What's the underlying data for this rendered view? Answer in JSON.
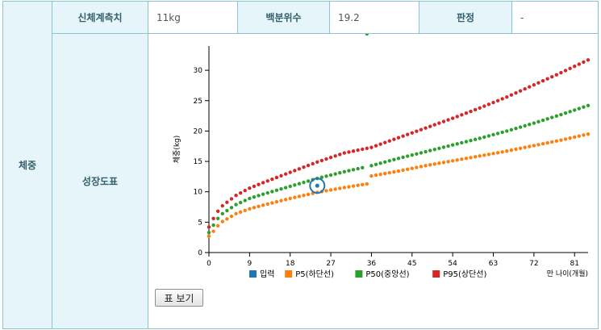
{
  "table": {
    "row_label": "체중",
    "measure_label": "신체계측치",
    "measure_value": "11kg",
    "percentile_label": "백분위수",
    "percentile_value": "19.2",
    "judgement_label": "판정",
    "judgement_value": "-",
    "chart_label": "성장도표",
    "table_view_button": "표 보기"
  },
  "chart_data": {
    "type": "scatter",
    "xlabel": "만 나이(개월)",
    "ylabel": "체중(kg)",
    "x_ticks": [
      0,
      9,
      18,
      27,
      36,
      45,
      54,
      63,
      72,
      81
    ],
    "y_ticks": [
      0,
      5,
      10,
      15,
      20,
      25,
      30
    ],
    "xlim": [
      0,
      84
    ],
    "ylim": [
      0,
      34
    ],
    "legend_position": "bottom",
    "series": [
      {
        "name": "입력",
        "color": "#1f77b4",
        "x": [
          24
        ],
        "y": [
          11
        ]
      },
      {
        "name": "P5(하단선)",
        "color": "#ff7f0e",
        "x": [
          0,
          1,
          2,
          3,
          6,
          9,
          12,
          18,
          24,
          30,
          35,
          36,
          42,
          48,
          54,
          60,
          66,
          72,
          78,
          84
        ],
        "y": [
          2.7,
          3.5,
          4.4,
          5.1,
          6.4,
          7.2,
          7.8,
          8.9,
          9.9,
          10.7,
          11.3,
          12.6,
          13.4,
          14.3,
          15.1,
          15.9,
          16.7,
          17.6,
          18.5,
          19.5
        ]
      },
      {
        "name": "P50(중앙선)",
        "color": "#2ca02c",
        "x": [
          0,
          1,
          2,
          3,
          6,
          9,
          12,
          18,
          24,
          30,
          36,
          42,
          48,
          54,
          60,
          66,
          72,
          78,
          84
        ],
        "y": [
          3.3,
          4.5,
          5.6,
          6.4,
          7.9,
          8.9,
          9.6,
          10.9,
          12.2,
          13.3,
          14.3,
          15.5,
          16.6,
          17.7,
          18.8,
          20.0,
          21.3,
          22.7,
          24.2
        ]
      },
      {
        "name": "P95(상단선)",
        "color": "#d62728",
        "x": [
          0,
          1,
          2,
          3,
          6,
          9,
          12,
          18,
          24,
          30,
          36,
          42,
          48,
          54,
          60,
          66,
          72,
          78,
          84
        ],
        "y": [
          4.2,
          5.6,
          6.8,
          7.7,
          9.4,
          10.6,
          11.5,
          13.2,
          14.9,
          16.4,
          17.3,
          18.9,
          20.5,
          22.1,
          23.8,
          25.6,
          27.6,
          29.6,
          31.7
        ]
      }
    ]
  }
}
